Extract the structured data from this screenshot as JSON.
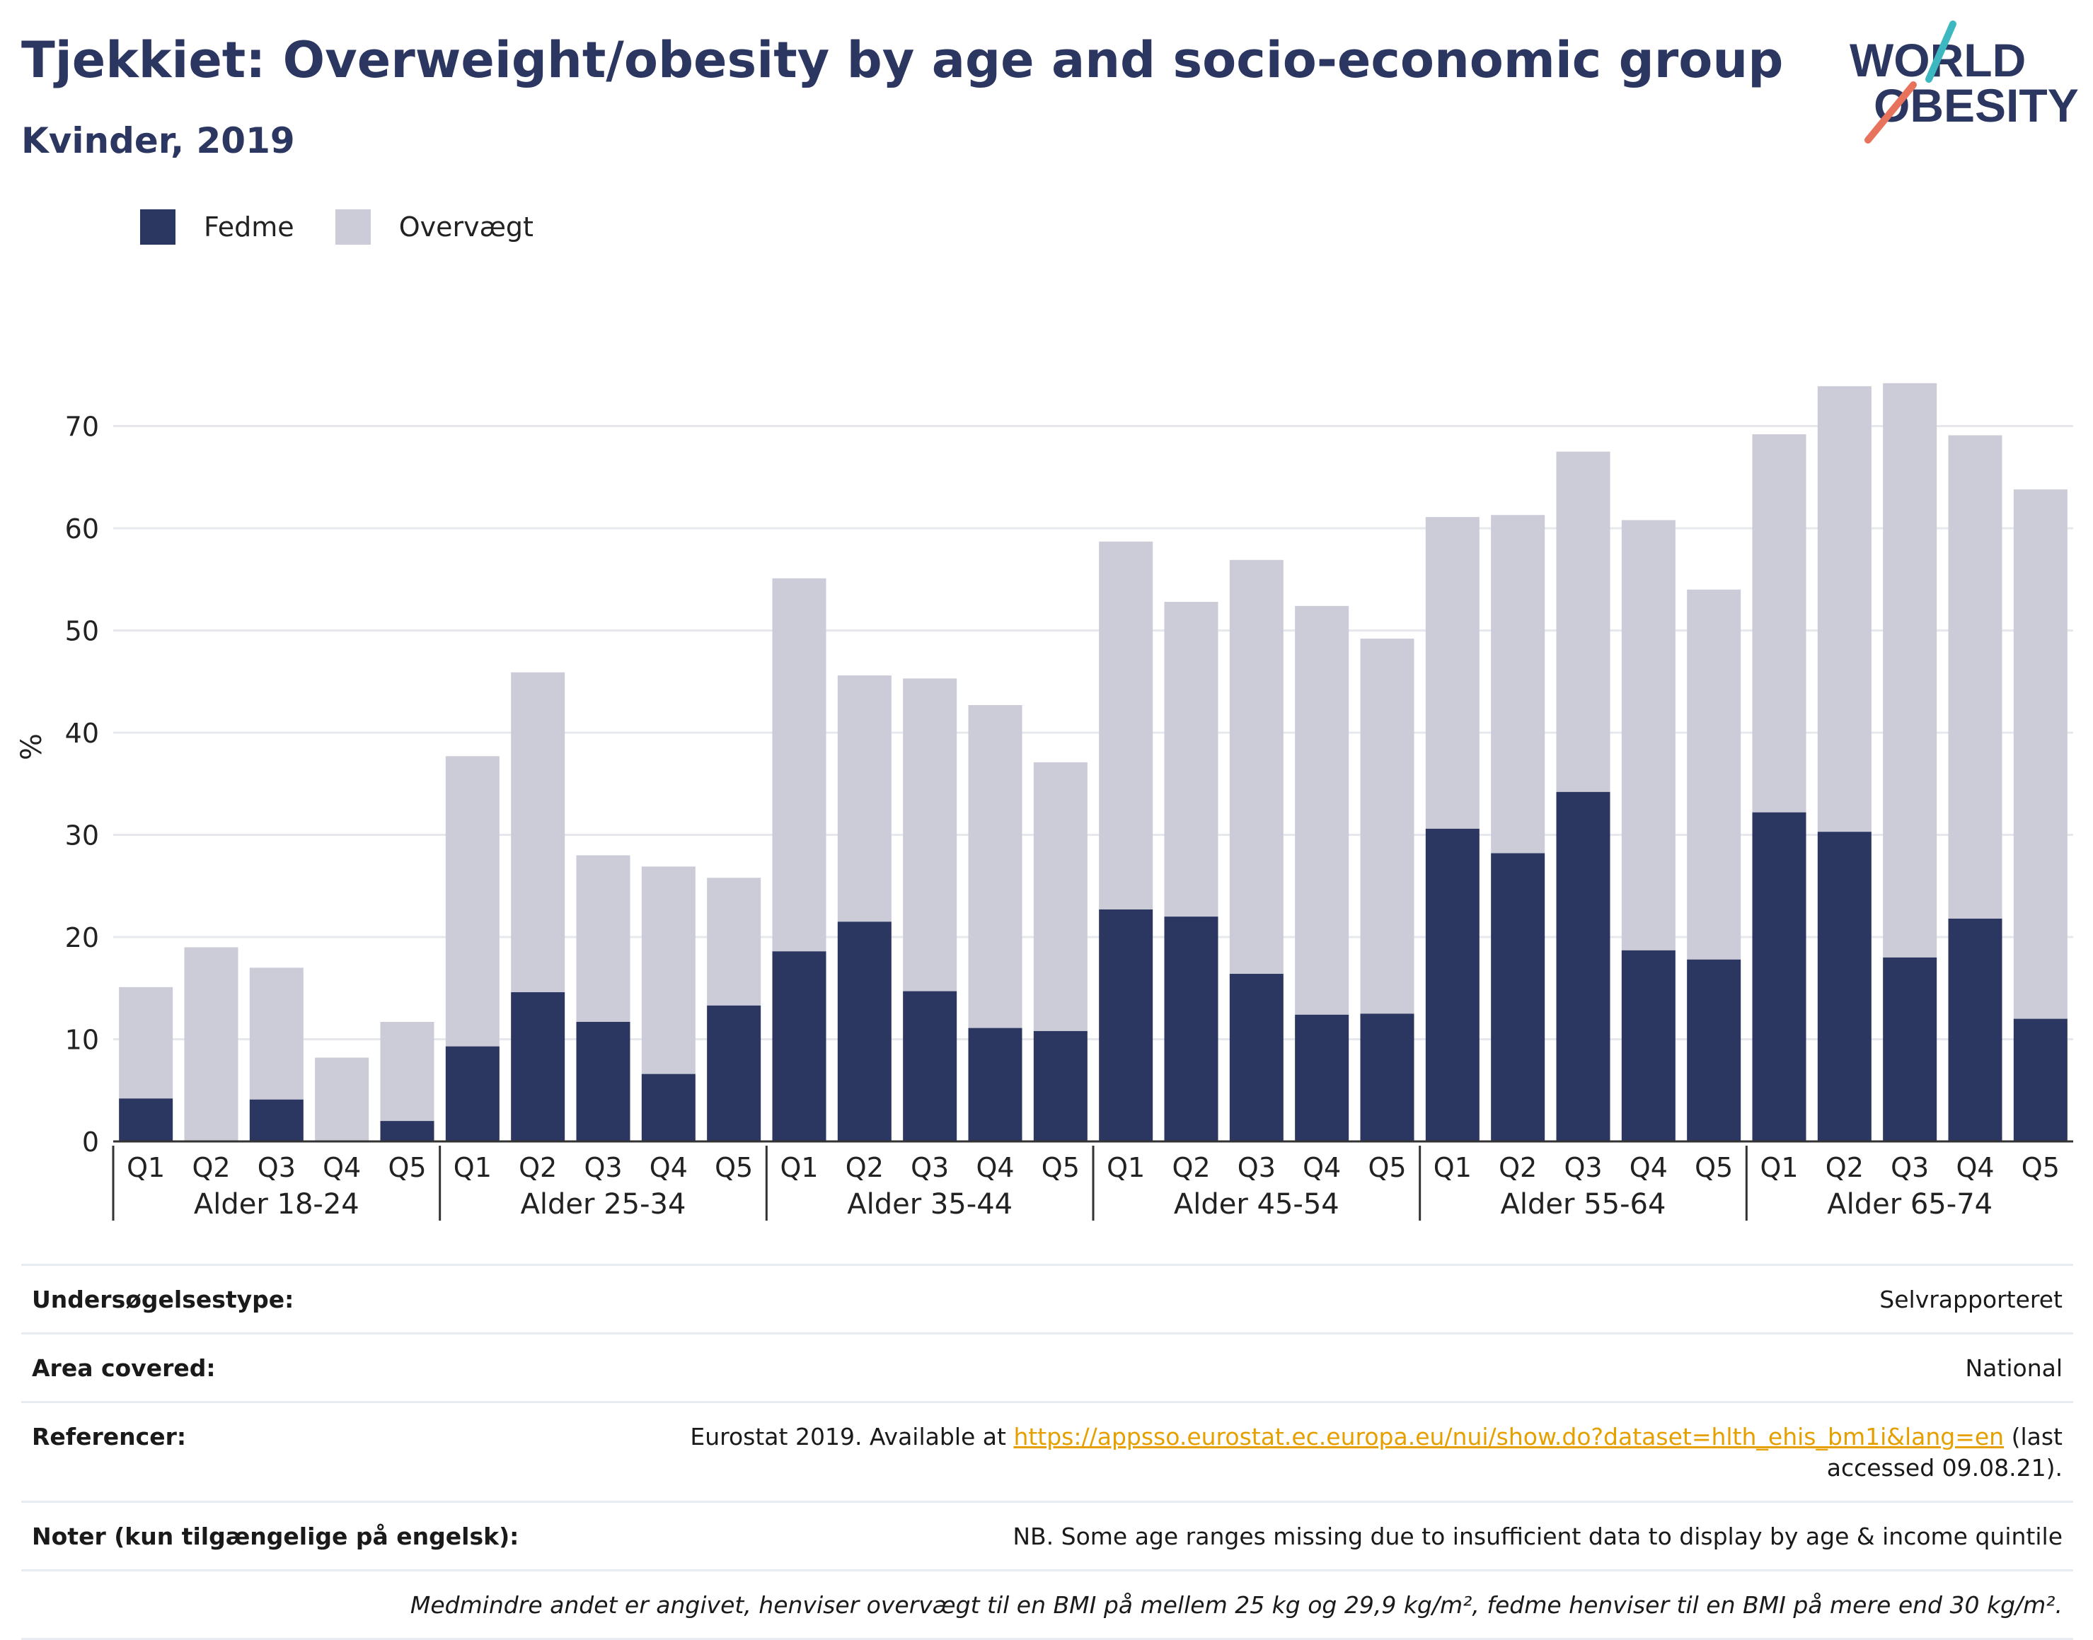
{
  "header": {
    "title": "Tjekkiet: Overweight/obesity by age and socio-economic group",
    "subtitle": "Kvinder, 2019"
  },
  "logo": {
    "line1": "WORLD",
    "line2": "OBESITY"
  },
  "colors": {
    "fedme": "#2b3661",
    "overvaegt": "#cbccd8",
    "title": "#2b3661",
    "link": "#e5a000"
  },
  "chart_data": {
    "type": "bar",
    "stacked": true,
    "ylabel": "%",
    "ylim": [
      0,
      80
    ],
    "yticks": [
      0,
      10,
      20,
      30,
      40,
      50,
      60,
      70
    ],
    "grid": true,
    "legend_position": "top-left",
    "groups": [
      "Alder 18-24",
      "Alder 25-34",
      "Alder 35-44",
      "Alder 45-54",
      "Alder 55-64",
      "Alder 65-74"
    ],
    "categories": [
      "Q1",
      "Q2",
      "Q3",
      "Q4",
      "Q5"
    ],
    "series": [
      {
        "name": "Fedme",
        "values": [
          [
            4.2,
            0,
            4.1,
            0,
            2.0
          ],
          [
            9.3,
            14.6,
            11.7,
            6.6,
            13.3
          ],
          [
            18.6,
            21.5,
            14.7,
            11.1,
            10.8
          ],
          [
            22.7,
            22.0,
            16.4,
            12.4,
            12.5
          ],
          [
            30.6,
            28.2,
            34.2,
            18.7,
            17.8
          ],
          [
            32.2,
            30.3,
            18.0,
            21.8,
            12.0
          ]
        ]
      },
      {
        "name": "Overvægt",
        "values": [
          [
            10.9,
            19.0,
            12.9,
            8.2,
            9.7
          ],
          [
            28.4,
            31.3,
            16.3,
            20.3,
            12.5
          ],
          [
            36.5,
            24.1,
            30.6,
            31.6,
            26.3
          ],
          [
            36.0,
            30.8,
            40.5,
            40.0,
            36.7
          ],
          [
            30.5,
            33.1,
            33.3,
            42.1,
            36.2
          ],
          [
            37.0,
            43.6,
            56.2,
            47.3,
            51.8
          ]
        ]
      }
    ]
  },
  "info": [
    {
      "label": "Undersøgelsestype:",
      "value": "Selvrapporteret"
    },
    {
      "label": "Area covered:",
      "value": "National"
    },
    {
      "label": "Referencer:",
      "value_prefix": "Eurostat 2019. Available at ",
      "link": "https://appsso.eurostat.ec.europa.eu/nui/show.do?dataset=hlth_ehis_bm1i&lang=en",
      "value_suffix": " (last accessed 09.08.21)."
    },
    {
      "label": "Noter (kun tilgængelige på engelsk):",
      "value": "NB. Some age ranges missing due to insufficient data to display by age & income quintile"
    }
  ],
  "footnote": "Medmindre andet er angivet, henviser overvægt til en BMI på mellem 25 kg og 29,9 kg/m², fedme henviser til en BMI på mere end 30 kg/m²."
}
